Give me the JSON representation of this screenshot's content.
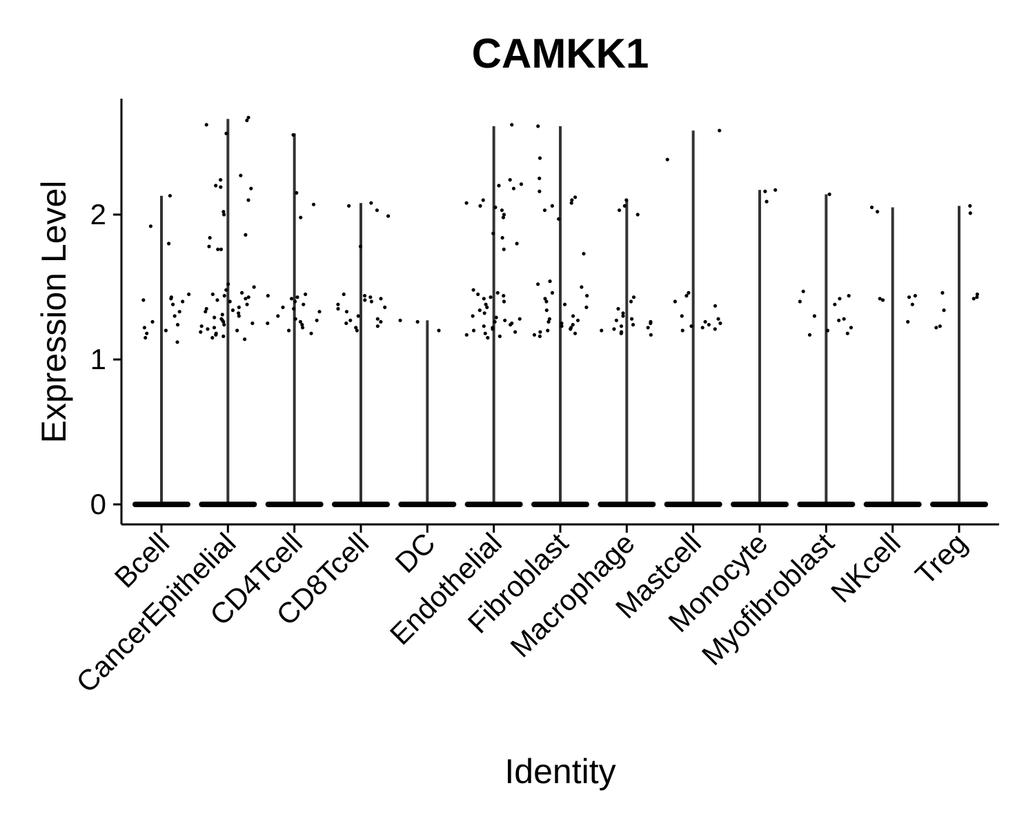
{
  "chart_data": {
    "type": "violin",
    "title": "CAMKK1",
    "xlabel": "Identity",
    "ylabel": "Expression Level",
    "ylim": [
      -0.14,
      2.8
    ],
    "yticks": [
      0,
      1,
      2
    ],
    "grid": false,
    "legend": "none",
    "point_color": "#000000",
    "violin_color": "#333333",
    "categories": [
      "Bcell",
      "CancerEpithelial",
      "CD4Tcell",
      "CD8Tcell",
      "DC",
      "Endothelial",
      "Fibroblast",
      "Macrophage",
      "Mastcell",
      "Monocyte",
      "Myofibroblast",
      "NKcell",
      "Treg"
    ],
    "violin_max": [
      2.13,
      2.66,
      2.56,
      2.08,
      1.27,
      2.61,
      2.61,
      2.1,
      2.58,
      2.17,
      2.14,
      2.05,
      2.06
    ],
    "points": [
      {
        "category": "Bcell",
        "values": [
          2.13,
          1.92,
          1.8,
          1.45,
          1.43,
          1.42,
          1.41,
          1.4,
          1.38,
          1.33,
          1.3,
          1.26,
          1.24,
          1.22,
          1.2,
          1.18,
          1.15,
          1.12
        ]
      },
      {
        "category": "CancerEpithelial",
        "values": [
          2.67,
          2.65,
          2.62,
          2.56,
          2.27,
          2.24,
          2.2,
          2.19,
          2.18,
          2.1,
          2.02,
          2.0,
          1.86,
          1.84,
          1.78,
          1.76,
          1.76,
          1.52,
          1.5,
          1.48,
          1.46,
          1.45,
          1.44,
          1.43,
          1.42,
          1.41,
          1.4,
          1.38,
          1.36,
          1.35,
          1.34,
          1.33,
          1.32,
          1.31,
          1.3,
          1.29,
          1.28,
          1.27,
          1.26,
          1.25,
          1.24,
          1.23,
          1.22,
          1.21,
          1.2,
          1.19,
          1.18,
          1.17,
          1.16,
          1.15,
          1.14
        ]
      },
      {
        "category": "CD4Tcell",
        "values": [
          2.55,
          2.15,
          2.07,
          1.98,
          1.45,
          1.44,
          1.43,
          1.42,
          1.4,
          1.38,
          1.36,
          1.35,
          1.33,
          1.3,
          1.28,
          1.27,
          1.26,
          1.25,
          1.24,
          1.22,
          1.2,
          1.18
        ]
      },
      {
        "category": "CD8Tcell",
        "values": [
          2.08,
          2.06,
          2.03,
          1.99,
          1.78,
          1.45,
          1.44,
          1.43,
          1.42,
          1.41,
          1.4,
          1.38,
          1.36,
          1.35,
          1.33,
          1.3,
          1.28,
          1.27,
          1.26,
          1.25,
          1.23,
          1.22,
          1.2
        ]
      },
      {
        "category": "DC",
        "values": [
          1.27,
          1.26,
          1.2
        ]
      },
      {
        "category": "Endothelial",
        "values": [
          2.62,
          2.24,
          2.21,
          2.2,
          2.18,
          2.1,
          2.08,
          2.06,
          2.05,
          2.03,
          2.0,
          1.98,
          1.87,
          1.84,
          1.8,
          1.76,
          1.48,
          1.46,
          1.45,
          1.44,
          1.43,
          1.42,
          1.4,
          1.38,
          1.36,
          1.34,
          1.32,
          1.3,
          1.29,
          1.28,
          1.27,
          1.26,
          1.25,
          1.24,
          1.23,
          1.22,
          1.21,
          1.2,
          1.19,
          1.18,
          1.17,
          1.16,
          1.15
        ]
      },
      {
        "category": "Fibroblast",
        "values": [
          2.61,
          2.39,
          2.25,
          2.16,
          2.12,
          2.1,
          2.08,
          2.06,
          2.03,
          1.97,
          1.73,
          1.54,
          1.52,
          1.5,
          1.46,
          1.44,
          1.42,
          1.4,
          1.38,
          1.36,
          1.34,
          1.3,
          1.28,
          1.27,
          1.26,
          1.25,
          1.24,
          1.23,
          1.22,
          1.21,
          1.2,
          1.19,
          1.18,
          1.17,
          1.16
        ]
      },
      {
        "category": "Macrophage",
        "values": [
          2.1,
          2.06,
          2.03,
          2.0,
          1.43,
          1.4,
          1.35,
          1.32,
          1.3,
          1.28,
          1.27,
          1.26,
          1.25,
          1.24,
          1.23,
          1.22,
          1.21,
          1.2,
          1.19,
          1.18,
          1.17
        ]
      },
      {
        "category": "Mastcell",
        "values": [
          2.58,
          2.38,
          1.46,
          1.44,
          1.4,
          1.37,
          1.3,
          1.28,
          1.26,
          1.25,
          1.24,
          1.23,
          1.22,
          1.21,
          1.2
        ]
      },
      {
        "category": "Monocyte",
        "values": [
          2.17,
          2.16,
          2.09
        ]
      },
      {
        "category": "Myofibroblast",
        "values": [
          2.14,
          1.47,
          1.44,
          1.42,
          1.4,
          1.38,
          1.3,
          1.28,
          1.27,
          1.22,
          1.2,
          1.18,
          1.17
        ]
      },
      {
        "category": "NKcell",
        "values": [
          2.05,
          2.02,
          1.44,
          1.43,
          1.42,
          1.41,
          1.38,
          1.26
        ]
      },
      {
        "category": "Treg",
        "values": [
          2.06,
          2.01,
          1.46,
          1.45,
          1.43,
          1.42,
          1.34,
          1.23,
          1.22
        ]
      }
    ]
  }
}
